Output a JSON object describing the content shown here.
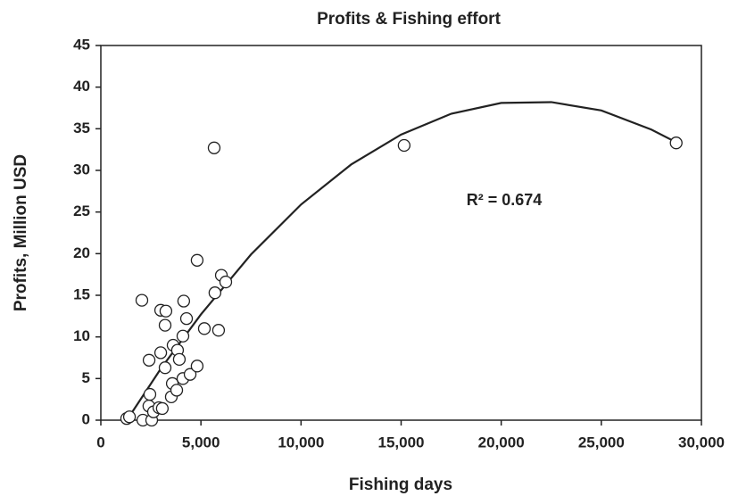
{
  "chart_data": {
    "type": "scatter",
    "title": "Profits & Fishing effort",
    "x_label": "Fishing days",
    "y_label": "Profits, Million USD",
    "annotation": "R² = 0.674",
    "x": [
      1290,
      1430,
      2050,
      2410,
      2450,
      2100,
      2540,
      2400,
      2630,
      2900,
      3070,
      2990,
      3250,
      3210,
      2990,
      3210,
      3570,
      3520,
      3790,
      3610,
      3830,
      3920,
      4100,
      4140,
      4280,
      4100,
      4460,
      4810,
      4810,
      5170,
      5660,
      5700,
      5880,
      6020,
      6240,
      15150,
      28740
    ],
    "values": [
      0.2,
      0.4,
      14.4,
      7.2,
      3.1,
      0,
      0,
      1.7,
      1.0,
      1.5,
      1.4,
      13.2,
      13.1,
      11.4,
      8.1,
      6.3,
      4.4,
      2.8,
      3.6,
      9.0,
      8.4,
      7.3,
      10.1,
      14.3,
      12.2,
      5.0,
      5.5,
      6.5,
      19.2,
      11.0,
      32.7,
      15.3,
      10.8,
      17.4,
      16.6,
      33.0,
      33.3
    ],
    "color": "#222222",
    "trendline": {
      "x": [
        1300,
        3000,
        5000,
        7500,
        10000,
        12500,
        15000,
        17500,
        20000,
        22500,
        25000,
        27500,
        28800
      ],
      "values": [
        0,
        6.2,
        12.7,
        19.9,
        25.9,
        30.7,
        34.3,
        36.8,
        38.1,
        38.2,
        37.2,
        34.9,
        33.3
      ]
    },
    "xlim": [
      0,
      30000
    ],
    "ylim": [
      0,
      45
    ],
    "xticks": [
      0,
      {
        "value": 5000,
        "label": "5,000"
      },
      {
        "value": 10000,
        "label": "10,000"
      },
      {
        "value": 15000,
        "label": "15,000"
      },
      {
        "value": 20000,
        "label": "20,000"
      },
      {
        "value": 25000,
        "label": "25,000"
      },
      {
        "value": 30000,
        "label": "30,000"
      }
    ],
    "yticks": [
      0,
      5,
      10,
      15,
      20,
      25,
      30,
      35,
      40,
      45
    ],
    "grid": false
  }
}
